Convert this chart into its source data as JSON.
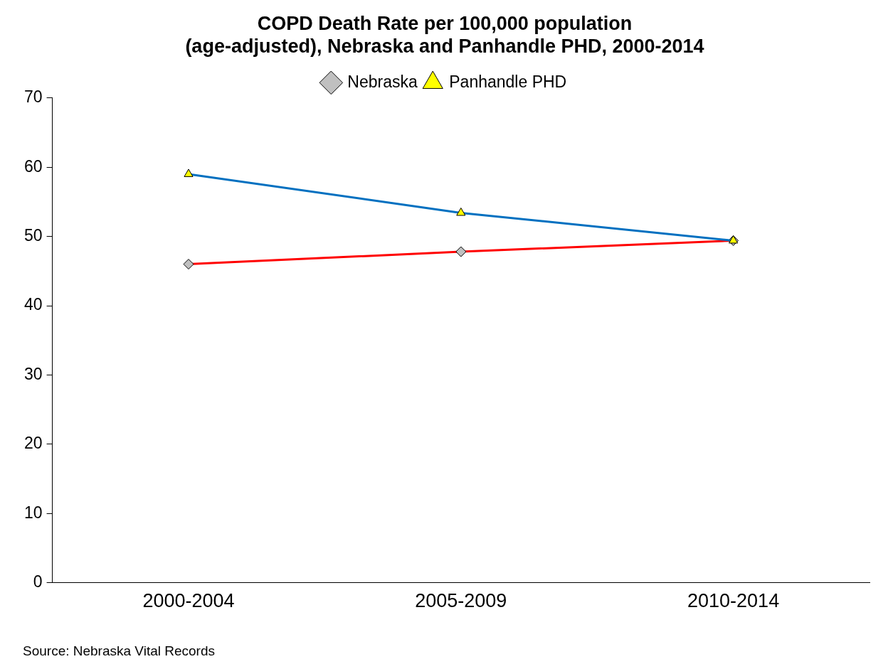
{
  "chart_data": {
    "type": "line",
    "title": [
      "COPD Death Rate per 100,000 population",
      "(age-adjusted), Nebraska and Panhandle PHD, 2000-2014"
    ],
    "categories": [
      "2000-2004",
      "2005-2009",
      "2010-2014"
    ],
    "series": [
      {
        "name": "Nebraska",
        "color": "#ff0000",
        "marker": "diamond",
        "values": [
          46.0,
          47.8,
          49.4
        ]
      },
      {
        "name": "Panhandle PHD",
        "color": "#0070c0",
        "marker": "triangle",
        "values": [
          59.0,
          53.4,
          49.4
        ]
      }
    ],
    "ylim": [
      0,
      70
    ],
    "yticks": [
      0,
      10,
      20,
      30,
      40,
      50,
      60,
      70
    ],
    "grid": false,
    "legend": "top",
    "annotations": [
      "Source: Nebraska Vital Records"
    ]
  }
}
